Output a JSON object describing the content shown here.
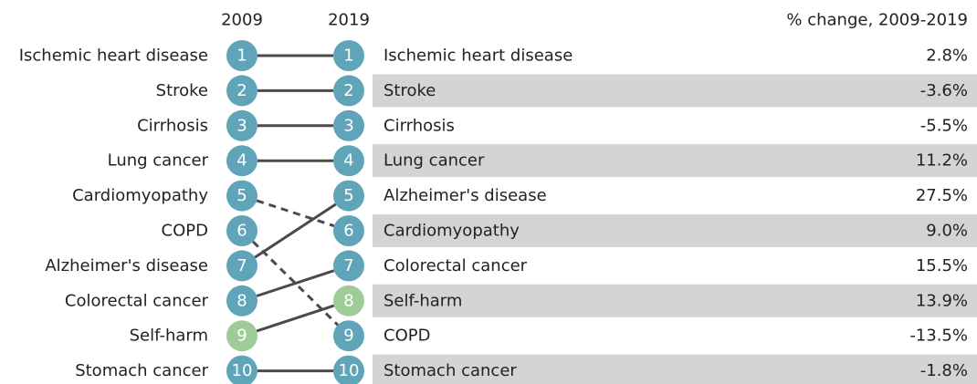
{
  "headers": {
    "year_left": "2009",
    "year_right": "2019",
    "change": "% change, 2009-2019"
  },
  "left": [
    {
      "rank": 1,
      "cause": "Ischemic heart disease",
      "color": "#5fa4b8"
    },
    {
      "rank": 2,
      "cause": "Stroke",
      "color": "#5fa4b8"
    },
    {
      "rank": 3,
      "cause": "Cirrhosis",
      "color": "#5fa4b8"
    },
    {
      "rank": 4,
      "cause": "Lung cancer",
      "color": "#5fa4b8"
    },
    {
      "rank": 5,
      "cause": "Cardiomyopathy",
      "color": "#5fa4b8"
    },
    {
      "rank": 6,
      "cause": "COPD",
      "color": "#5fa4b8"
    },
    {
      "rank": 7,
      "cause": "Alzheimer's disease",
      "color": "#5fa4b8"
    },
    {
      "rank": 8,
      "cause": "Colorectal cancer",
      "color": "#5fa4b8"
    },
    {
      "rank": 9,
      "cause": "Self-harm",
      "color": "#9dcc99"
    },
    {
      "rank": 10,
      "cause": "Stomach cancer",
      "color": "#5fa4b8"
    }
  ],
  "right": [
    {
      "rank": 1,
      "cause": "Ischemic heart disease",
      "change": "2.8%",
      "color": "#5fa4b8"
    },
    {
      "rank": 2,
      "cause": "Stroke",
      "change": "-3.6%",
      "color": "#5fa4b8"
    },
    {
      "rank": 3,
      "cause": "Cirrhosis",
      "change": "-5.5%",
      "color": "#5fa4b8"
    },
    {
      "rank": 4,
      "cause": "Lung cancer",
      "change": "11.2%",
      "color": "#5fa4b8"
    },
    {
      "rank": 5,
      "cause": "Alzheimer's disease",
      "change": "27.5%",
      "color": "#5fa4b8"
    },
    {
      "rank": 6,
      "cause": "Cardiomyopathy",
      "change": "9.0%",
      "color": "#5fa4b8"
    },
    {
      "rank": 7,
      "cause": "Colorectal cancer",
      "change": "15.5%",
      "color": "#5fa4b8"
    },
    {
      "rank": 8,
      "cause": "Self-harm",
      "change": "13.9%",
      "color": "#9dcc99"
    },
    {
      "rank": 9,
      "cause": "COPD",
      "change": "-13.5%",
      "color": "#5fa4b8"
    },
    {
      "rank": 10,
      "cause": "Stomach cancer",
      "change": "-1.8%",
      "color": "#5fa4b8"
    }
  ]
}
